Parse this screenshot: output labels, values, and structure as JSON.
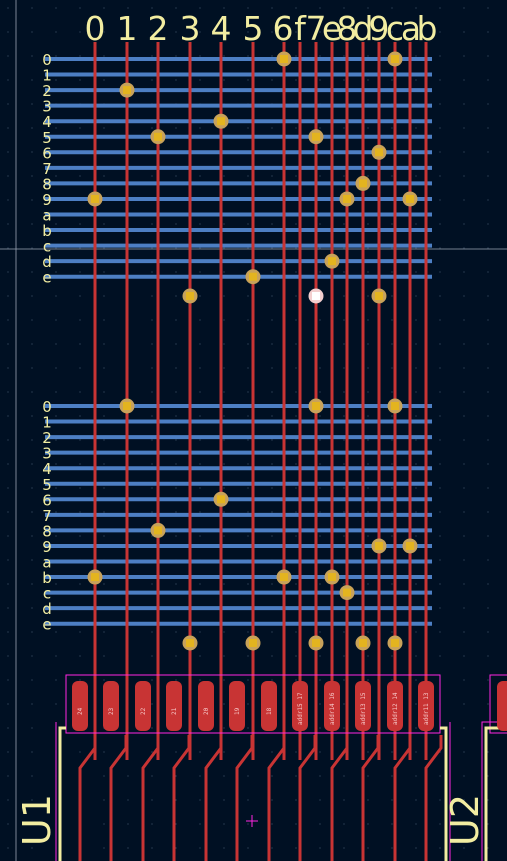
{
  "view": {
    "background": "#001023",
    "colors": {
      "hTrace": "#4d7fc4",
      "vTrace": "#c83434",
      "padFill": "#c83434",
      "viaRing": "#c8a25a",
      "viaCore": "#e3b41f",
      "viaSelected": "#f3cfcf",
      "silkscreen": "#f2eda1",
      "outline": "#ff26e2",
      "grid": "#41536b",
      "cursor": "#c0c0c0"
    }
  },
  "columns": [
    "0",
    "1",
    "2",
    "3",
    "4",
    "5",
    "6",
    "f",
    "7",
    "e",
    "8",
    "d",
    "9",
    "c",
    "a",
    "b"
  ],
  "block_top": {
    "rows": [
      "0",
      "1",
      "2",
      "3",
      "4",
      "5",
      "6",
      "7",
      "8",
      "9",
      "a",
      "b",
      "c",
      "d",
      "e"
    ],
    "vias": [
      {
        "col": "6",
        "row": "0"
      },
      {
        "col": "c",
        "row": "0"
      },
      {
        "col": "1",
        "row": "2"
      },
      {
        "col": "4",
        "row": "4"
      },
      {
        "col": "2",
        "row": "5"
      },
      {
        "col": "7",
        "row": "5"
      },
      {
        "col": "9",
        "row": "6"
      },
      {
        "col": "d",
        "row": "8"
      },
      {
        "col": "0",
        "row": "9"
      },
      {
        "col": "8",
        "row": "9"
      },
      {
        "col": "a",
        "row": "9"
      },
      {
        "col": "e",
        "row": "d"
      },
      {
        "col": "5",
        "row": "e"
      },
      {
        "col": "3",
        "row": "f"
      },
      {
        "col": "7",
        "row": "f",
        "selected": true
      },
      {
        "col": "9",
        "row": "f"
      }
    ]
  },
  "block_bottom": {
    "rows": [
      "0",
      "1",
      "2",
      "3",
      "4",
      "5",
      "6",
      "7",
      "8",
      "9",
      "a",
      "b",
      "c",
      "d",
      "e"
    ],
    "vias": [
      {
        "col": "1",
        "row": "0"
      },
      {
        "col": "7",
        "row": "0"
      },
      {
        "col": "c",
        "row": "0"
      },
      {
        "col": "4",
        "row": "6"
      },
      {
        "col": "2",
        "row": "8"
      },
      {
        "col": "9",
        "row": "9"
      },
      {
        "col": "a",
        "row": "9"
      },
      {
        "col": "0",
        "row": "b"
      },
      {
        "col": "6",
        "row": "b"
      },
      {
        "col": "e",
        "row": "b"
      },
      {
        "col": "8",
        "row": "c"
      },
      {
        "col": "3",
        "row": "f"
      },
      {
        "col": "5",
        "row": "f"
      },
      {
        "col": "7",
        "row": "f"
      },
      {
        "col": "d",
        "row": "f"
      },
      {
        "col": "c",
        "row": "f"
      }
    ]
  },
  "pads": [
    {
      "num": "24",
      "net": ""
    },
    {
      "num": "23",
      "net": ""
    },
    {
      "num": "22",
      "net": ""
    },
    {
      "num": "21",
      "net": ""
    },
    {
      "num": "20",
      "net": ""
    },
    {
      "num": "19",
      "net": ""
    },
    {
      "num": "18",
      "net": ""
    },
    {
      "num": "17",
      "net": "addr15"
    },
    {
      "num": "16",
      "net": "addr14"
    },
    {
      "num": "15",
      "net": "addr13"
    },
    {
      "num": "14",
      "net": "addr12"
    },
    {
      "num": "13",
      "net": "addr11"
    }
  ],
  "components": [
    {
      "ref": "U1"
    },
    {
      "ref": "U2"
    }
  ]
}
